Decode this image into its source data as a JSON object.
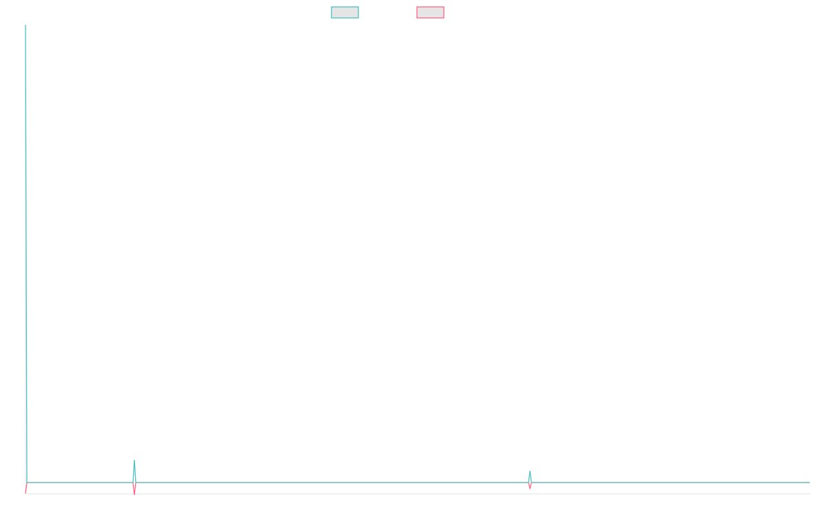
{
  "chart_data": {
    "type": "line",
    "title": "",
    "xlabel": "",
    "ylabel": "",
    "xlim": [
      0,
      569
    ],
    "ylim": [
      0,
      100
    ],
    "grid": false,
    "legend": "top",
    "legend_fill": "#e5e5e5",
    "series": [
      {
        "color": "#4bc0c0",
        "points": [
          [
            0,
            100
          ],
          [
            1,
            2.35
          ],
          [
            78,
            2.35
          ],
          [
            79,
            7.2
          ],
          [
            80,
            2.35
          ],
          [
            365,
            2.35
          ],
          [
            366,
            4.85
          ],
          [
            367,
            2.35
          ],
          [
            569,
            2.35
          ]
        ]
      },
      {
        "color": "#ff6384",
        "points": [
          [
            0,
            0
          ],
          [
            1,
            2.35
          ],
          [
            78,
            2.35
          ],
          [
            79,
            -0.3
          ],
          [
            80,
            2.35
          ],
          [
            365,
            2.35
          ],
          [
            366,
            1.0
          ],
          [
            367,
            2.35
          ],
          [
            569,
            2.35
          ]
        ]
      }
    ]
  }
}
